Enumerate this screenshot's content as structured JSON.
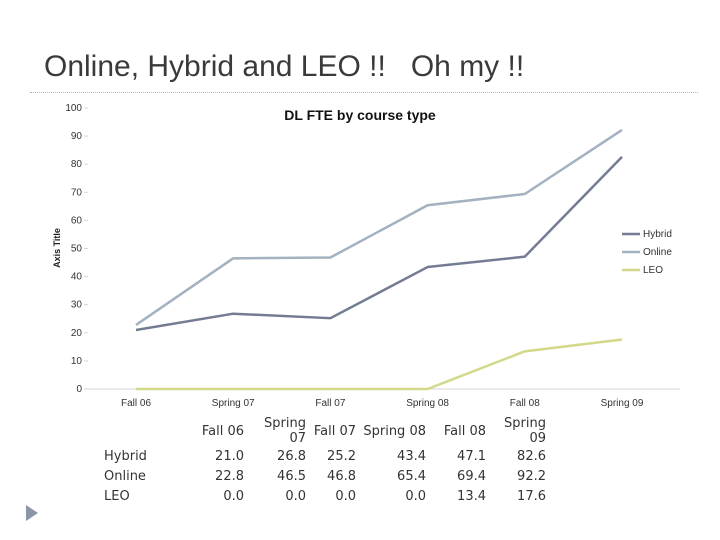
{
  "slide": {
    "title": "Online, Hybrid and LEO !!   Oh my !!"
  },
  "chart_data": {
    "type": "line",
    "title": "DL FTE by course type",
    "ylabel": "Axis Title",
    "xlabel": "",
    "ylim": [
      0,
      100
    ],
    "yticks": [
      0,
      10,
      20,
      30,
      40,
      50,
      60,
      70,
      80,
      90,
      100
    ],
    "categories": [
      "Fall 06",
      "Spring 07",
      "Fall 07",
      "Spring 08",
      "Fall 08",
      "Spring 09"
    ],
    "legend_position": "right",
    "grid": false,
    "series": [
      {
        "name": "Hybrid",
        "color": "#737c93",
        "values": [
          21.0,
          26.8,
          25.2,
          43.4,
          47.1,
          82.6
        ]
      },
      {
        "name": "Online",
        "color": "#a4b1c1",
        "values": [
          22.8,
          46.5,
          46.8,
          65.4,
          69.4,
          92.2
        ]
      },
      {
        "name": "LEO",
        "color": "#d3d88a",
        "values": [
          0.0,
          0.0,
          0.0,
          0.0,
          13.4,
          17.6
        ]
      }
    ],
    "table": {
      "columns": [
        "Fall 06",
        "Spring 07",
        "Fall 07",
        "Spring 08",
        "Fall 08",
        "Spring 09"
      ],
      "rows": [
        {
          "label": "Hybrid",
          "values": [
            "21.0",
            "26.8",
            "25.2",
            "43.4",
            "47.1",
            "82.6"
          ]
        },
        {
          "label": "Online",
          "values": [
            "22.8",
            "46.5",
            "46.8",
            "65.4",
            "69.4",
            "92.2"
          ]
        },
        {
          "label": "LEO",
          "values": [
            "0.0",
            "0.0",
            "0.0",
            "0.0",
            "13.4",
            "17.6"
          ]
        }
      ]
    }
  }
}
